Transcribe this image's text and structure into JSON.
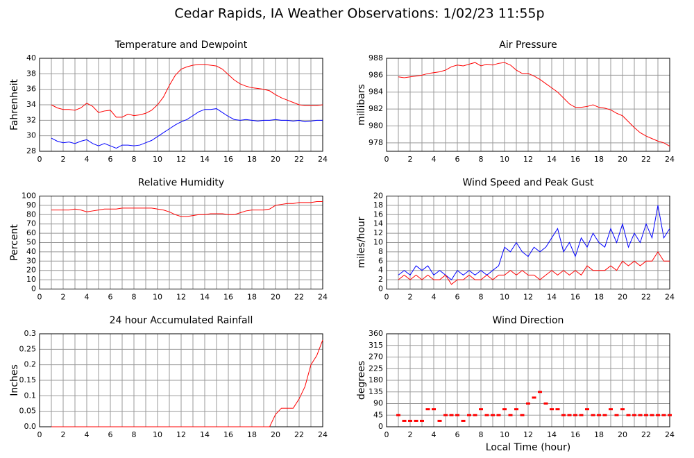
{
  "title": "Cedar Rapids, IA Weather Observations: 1/02/23 11:55p",
  "chart_data": [
    {
      "type": "line",
      "title": "Temperature and Dewpoint",
      "ylabel": "Fahrenheit",
      "x": [
        1,
        1.5,
        2,
        2.5,
        3,
        3.5,
        4,
        4.5,
        5,
        5.5,
        6,
        6.5,
        7,
        7.5,
        8,
        8.5,
        9,
        9.5,
        10,
        10.5,
        11,
        11.5,
        12,
        12.5,
        13,
        13.5,
        14,
        14.5,
        15,
        15.5,
        16,
        16.5,
        17,
        17.5,
        18,
        18.5,
        19,
        19.5,
        20,
        20.5,
        21,
        21.5,
        22,
        22.5,
        23,
        23.5,
        24
      ],
      "series": [
        {
          "color": "#ff0000",
          "values": [
            34,
            33.6,
            33.4,
            33.4,
            33.3,
            33.6,
            34.2,
            33.8,
            33,
            33.2,
            33.3,
            32.4,
            32.4,
            32.8,
            32.6,
            32.7,
            32.9,
            33.3,
            34,
            35,
            36.5,
            37.8,
            38.6,
            38.9,
            39.1,
            39.2,
            39.2,
            39.1,
            39,
            38.6,
            37.9,
            37.2,
            36.7,
            36.4,
            36.2,
            36.1,
            36,
            35.8,
            35.3,
            34.9,
            34.6,
            34.3,
            34,
            33.9,
            33.9,
            33.9,
            34
          ]
        },
        {
          "color": "#0000ff",
          "values": [
            29.7,
            29.3,
            29.1,
            29.2,
            29,
            29.3,
            29.5,
            29,
            28.7,
            29,
            28.7,
            28.4,
            28.8,
            28.8,
            28.7,
            28.8,
            29.1,
            29.4,
            29.9,
            30.4,
            30.9,
            31.4,
            31.8,
            32.1,
            32.6,
            33.1,
            33.4,
            33.4,
            33.5,
            33,
            32.5,
            32.1,
            32,
            32.1,
            32,
            31.9,
            32,
            32,
            32.1,
            32,
            32,
            31.9,
            32,
            31.8,
            31.9,
            32,
            32
          ]
        }
      ],
      "xlim": [
        0,
        24
      ],
      "xticks": [
        0,
        2,
        4,
        6,
        8,
        10,
        12,
        14,
        16,
        18,
        20,
        22,
        24
      ],
      "xminorticks": [
        1,
        3,
        5,
        7,
        9,
        11,
        13,
        15,
        17,
        19,
        21,
        23
      ],
      "ylim": [
        28,
        40
      ],
      "yticks": [
        28,
        30,
        32,
        34,
        36,
        38,
        40
      ],
      "grid": true
    },
    {
      "type": "line",
      "title": "Air Pressure",
      "ylabel": "millibars",
      "x": [
        1,
        1.5,
        2,
        2.5,
        3,
        3.5,
        4,
        4.5,
        5,
        5.5,
        6,
        6.5,
        7,
        7.5,
        8,
        8.5,
        9,
        9.5,
        10,
        10.5,
        11,
        11.5,
        12,
        12.5,
        13,
        13.5,
        14,
        14.5,
        15,
        15.5,
        16,
        16.5,
        17,
        17.5,
        18,
        18.5,
        19,
        19.5,
        20,
        20.5,
        21,
        21.5,
        22,
        22.5,
        23,
        23.5,
        24
      ],
      "series": [
        {
          "color": "#ff0000",
          "values": [
            985.8,
            985.7,
            985.8,
            985.9,
            986,
            986.2,
            986.3,
            986.4,
            986.6,
            987,
            987.2,
            987.1,
            987.3,
            987.5,
            987.1,
            987.3,
            987.2,
            987.4,
            987.5,
            987.2,
            986.6,
            986.2,
            986.2,
            985.9,
            985.5,
            985,
            984.5,
            984,
            983.3,
            982.6,
            982.2,
            982.2,
            982.3,
            982.5,
            982.2,
            982.1,
            981.9,
            981.5,
            981.2,
            980.5,
            979.8,
            979.2,
            978.8,
            978.5,
            978.2,
            978,
            977.6
          ]
        }
      ],
      "xlim": [
        0,
        24
      ],
      "xticks": [
        0,
        2,
        4,
        6,
        8,
        10,
        12,
        14,
        16,
        18,
        20,
        22,
        24
      ],
      "xminorticks": [
        1,
        3,
        5,
        7,
        9,
        11,
        13,
        15,
        17,
        19,
        21,
        23
      ],
      "ylim": [
        977,
        988
      ],
      "yticks": [
        978,
        980,
        982,
        984,
        986,
        988
      ],
      "grid": true
    },
    {
      "type": "line",
      "title": "Relative Humidity",
      "ylabel": "Percent",
      "x": [
        1,
        1.5,
        2,
        2.5,
        3,
        3.5,
        4,
        4.5,
        5,
        5.5,
        6,
        6.5,
        7,
        7.5,
        8,
        8.5,
        9,
        9.5,
        10,
        10.5,
        11,
        11.5,
        12,
        12.5,
        13,
        13.5,
        14,
        14.5,
        15,
        15.5,
        16,
        16.5,
        17,
        17.5,
        18,
        18.5,
        19,
        19.5,
        20,
        20.5,
        21,
        21.5,
        22,
        22.5,
        23,
        23.5,
        24
      ],
      "series": [
        {
          "color": "#ff0000",
          "values": [
            85,
            85,
            85,
            85,
            86,
            85,
            83,
            84,
            85,
            86,
            86,
            86,
            87,
            87,
            87,
            87,
            87,
            87,
            86,
            85,
            83,
            80,
            78,
            78,
            79,
            80,
            80,
            81,
            81,
            81,
            80,
            80,
            82,
            84,
            85,
            85,
            85,
            86,
            90,
            91,
            92,
            92,
            93,
            93,
            93,
            94,
            94
          ]
        }
      ],
      "xlim": [
        0,
        24
      ],
      "xticks": [
        0,
        2,
        4,
        6,
        8,
        10,
        12,
        14,
        16,
        18,
        20,
        22,
        24
      ],
      "xminorticks": [
        1,
        3,
        5,
        7,
        9,
        11,
        13,
        15,
        17,
        19,
        21,
        23
      ],
      "ylim": [
        0,
        100
      ],
      "yticks": [
        0,
        10,
        20,
        30,
        40,
        50,
        60,
        70,
        80,
        90,
        100
      ],
      "grid": true
    },
    {
      "type": "line",
      "title": "Wind Speed and Peak Gust",
      "ylabel": "miles/hour",
      "x": [
        1,
        1.5,
        2,
        2.5,
        3,
        3.5,
        4,
        4.5,
        5,
        5.5,
        6,
        6.5,
        7,
        7.5,
        8,
        8.5,
        9,
        9.5,
        10,
        10.5,
        11,
        11.5,
        12,
        12.5,
        13,
        13.5,
        14,
        14.5,
        15,
        15.5,
        16,
        16.5,
        17,
        17.5,
        18,
        18.5,
        19,
        19.5,
        20,
        20.5,
        21,
        21.5,
        22,
        22.5,
        23,
        23.5,
        24
      ],
      "series": [
        {
          "color": "#0000ff",
          "values": [
            3,
            4,
            3,
            5,
            4,
            5,
            3,
            4,
            3,
            2,
            4,
            3,
            4,
            3,
            4,
            3,
            4,
            5,
            9,
            8,
            10,
            8,
            7,
            9,
            8,
            9,
            11,
            13,
            8,
            10,
            7,
            11,
            9,
            12,
            10,
            9,
            13,
            10,
            14,
            9,
            12,
            10,
            14,
            11,
            18,
            11,
            13
          ]
        },
        {
          "color": "#ff0000",
          "values": [
            2,
            3,
            2,
            3,
            2,
            3,
            2,
            2,
            3,
            1,
            2,
            2,
            3,
            2,
            2,
            3,
            2,
            3,
            3,
            4,
            3,
            4,
            3,
            3,
            2,
            3,
            4,
            3,
            4,
            3,
            4,
            3,
            5,
            4,
            4,
            4,
            5,
            4,
            6,
            5,
            6,
            5,
            6,
            6,
            8,
            6,
            6
          ]
        }
      ],
      "xlim": [
        0,
        24
      ],
      "xticks": [
        0,
        2,
        4,
        6,
        8,
        10,
        12,
        14,
        16,
        18,
        20,
        22,
        24
      ],
      "xminorticks": [
        1,
        3,
        5,
        7,
        9,
        11,
        13,
        15,
        17,
        19,
        21,
        23
      ],
      "ylim": [
        0,
        20
      ],
      "yticks": [
        0,
        2,
        4,
        6,
        8,
        10,
        12,
        14,
        16,
        18,
        20
      ],
      "grid": true
    },
    {
      "type": "line",
      "title": "24 hour Accumulated Rainfall",
      "ylabel": "Inches",
      "x": [
        1,
        1.5,
        2,
        2.5,
        3,
        3.5,
        4,
        4.5,
        5,
        5.5,
        6,
        6.5,
        7,
        7.5,
        8,
        8.5,
        9,
        9.5,
        10,
        10.5,
        11,
        11.5,
        12,
        12.5,
        13,
        13.5,
        14,
        14.5,
        15,
        15.5,
        16,
        16.5,
        17,
        17.5,
        18,
        18.5,
        19,
        19.5,
        20,
        20.5,
        21,
        21.5,
        22,
        22.5,
        23,
        23.5,
        24
      ],
      "series": [
        {
          "color": "#ff0000",
          "values": [
            0,
            0,
            0,
            0,
            0,
            0,
            0,
            0,
            0,
            0,
            0,
            0,
            0,
            0,
            0,
            0,
            0,
            0,
            0,
            0,
            0,
            0,
            0,
            0,
            0,
            0,
            0,
            0,
            0,
            0,
            0,
            0,
            0,
            0,
            0,
            0,
            0,
            0,
            0.04,
            0.06,
            0.06,
            0.06,
            0.09,
            0.13,
            0.2,
            0.23,
            0.28
          ]
        }
      ],
      "xlim": [
        0,
        24
      ],
      "xticks": [
        0,
        2,
        4,
        6,
        8,
        10,
        12,
        14,
        16,
        18,
        20,
        22,
        24
      ],
      "xminorticks": [
        1,
        3,
        5,
        7,
        9,
        11,
        13,
        15,
        17,
        19,
        21,
        23
      ],
      "ylim": [
        0,
        0.3
      ],
      "yticks": [
        {
          "value": 0,
          "label": "0.0"
        },
        0.05,
        0.1,
        0.15,
        0.2,
        0.25,
        0.3
      ],
      "grid": true
    },
    {
      "type": "scatter",
      "title": "Wind Direction",
      "ylabel": "degrees",
      "xlabel": "Local Time (hour)",
      "x": [
        1,
        1.5,
        2,
        2.5,
        3,
        3.5,
        4,
        4.5,
        5,
        5.5,
        6,
        6.5,
        7,
        7.5,
        8,
        8.5,
        9,
        9.5,
        10,
        10.5,
        11,
        11.5,
        12,
        12.5,
        13,
        13.5,
        14,
        14.5,
        15,
        15.5,
        16,
        16.5,
        17,
        17.5,
        18,
        18.5,
        19,
        19.5,
        20,
        20.5,
        21,
        21.5,
        22,
        22.5,
        23,
        23.5,
        24
      ],
      "series": [
        {
          "color": "#ff0000",
          "values": [
            45,
            23,
            23,
            23,
            23,
            68,
            68,
            23,
            45,
            45,
            45,
            23,
            45,
            45,
            68,
            45,
            45,
            45,
            68,
            45,
            68,
            45,
            90,
            113,
            135,
            90,
            68,
            68,
            45,
            45,
            45,
            45,
            68,
            45,
            45,
            45,
            68,
            45,
            68,
            45,
            45,
            45,
            45,
            45,
            45,
            45,
            45
          ]
        }
      ],
      "xlim": [
        0,
        24
      ],
      "xticks": [
        0,
        2,
        4,
        6,
        8,
        10,
        12,
        14,
        16,
        18,
        20,
        22,
        24
      ],
      "xminorticks": [
        1,
        3,
        5,
        7,
        9,
        11,
        13,
        15,
        17,
        19,
        21,
        23
      ],
      "ylim": [
        0,
        360
      ],
      "yticks": [
        0,
        45,
        90,
        135,
        180,
        225,
        270,
        315,
        360
      ],
      "grid": true
    }
  ]
}
